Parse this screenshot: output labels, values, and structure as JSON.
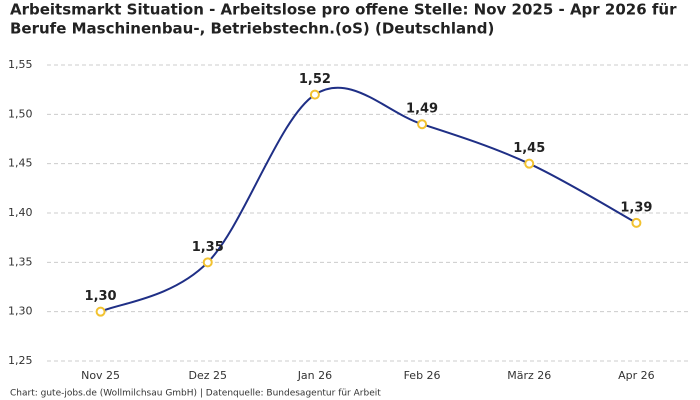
{
  "chart_data": {
    "type": "line",
    "title": [
      "Arbeitsmarkt Situation - Arbeitslose pro offene Stelle: Nov 2025 - Apr 2026 für",
      "Berufe Maschinenbau-, Betriebstechn.(oS) (Deutschland)"
    ],
    "source": "Chart: gute-jobs.de (Wollmilchsau GmbH) | Datenquelle: Bundesagentur für Arbeit",
    "categories": [
      "Nov 25",
      "Dez 25",
      "Jan 26",
      "Feb 26",
      "März 26",
      "Apr 26"
    ],
    "values": [
      1.3,
      1.35,
      1.52,
      1.49,
      1.45,
      1.39
    ],
    "value_labels": [
      "1,30",
      "1,35",
      "1,52",
      "1,49",
      "1,45",
      "1,39"
    ],
    "color": "#1f2f86",
    "marker_color": "#f2c230",
    "ylim": [
      1.25,
      1.55
    ],
    "yticks": [
      {
        "value": 1.25,
        "label": "1,25"
      },
      {
        "value": 1.3,
        "label": "1,30"
      },
      {
        "value": 1.35,
        "label": "1,35"
      },
      {
        "value": 1.4,
        "label": "1,40"
      },
      {
        "value": 1.45,
        "label": "1,45"
      },
      {
        "value": 1.5,
        "label": "1,50"
      },
      {
        "value": 1.55,
        "label": "1,55"
      }
    ],
    "grid": true
  }
}
